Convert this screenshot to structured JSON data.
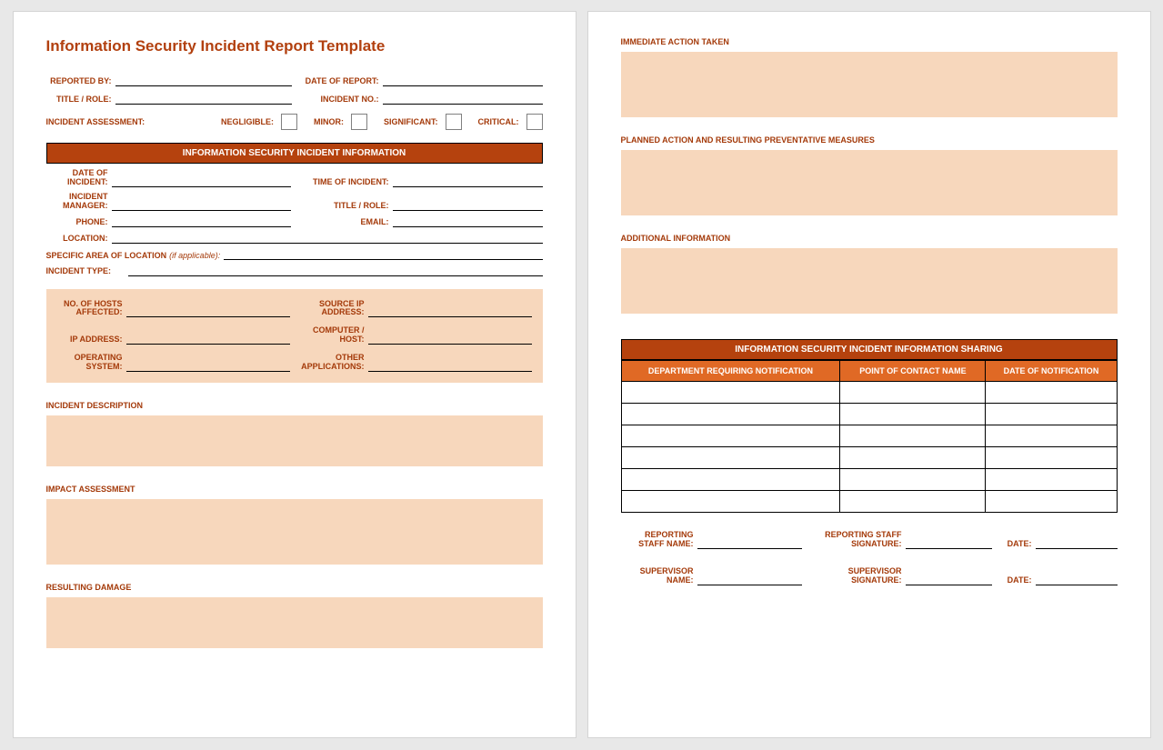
{
  "colors": {
    "accent_text": "#a43a0a",
    "title_text": "#b2400f",
    "section_bar_bg": "#b5420e",
    "table_header_bg": "#e06925",
    "light_fill_bg": "#f7d7bc",
    "page_bg": "#ffffff",
    "body_bg": "#e8e8e8",
    "border": "#000000"
  },
  "title": "Information Security Incident Report Template",
  "header_fields": {
    "reported_by": "REPORTED BY:",
    "date_of_report": "DATE OF REPORT:",
    "title_role": "TITLE / ROLE:",
    "incident_no": "INCIDENT NO.:"
  },
  "assessment": {
    "label": "INCIDENT ASSESSMENT:",
    "options": [
      "NEGLIGIBLE:",
      "MINOR:",
      "SIGNIFICANT:",
      "CRITICAL:"
    ]
  },
  "section_info": "INFORMATION SECURITY INCIDENT INFORMATION",
  "info_fields": {
    "date_of_incident": "DATE OF INCIDENT:",
    "time_of_incident": "TIME OF INCIDENT:",
    "incident_manager": "INCIDENT MANAGER:",
    "title_role": "TITLE / ROLE:",
    "phone": "PHONE:",
    "email": "EMAIL:",
    "location": "LOCATION:",
    "specific_area_prefix": "SPECIFIC AREA OF LOCATION",
    "specific_area_suffix": "(if applicable):",
    "incident_type": "INCIDENT TYPE:"
  },
  "tech_fields": {
    "hosts_affected": "NO. OF HOSTS AFFECTED:",
    "source_ip": "SOURCE IP ADDRESS:",
    "ip_address": "IP ADDRESS:",
    "computer_host": "COMPUTER / HOST:",
    "operating_system": "OPERATING SYSTEM:",
    "other_apps": "OTHER APPLICATIONS:"
  },
  "text_sections": {
    "incident_description": "INCIDENT DESCRIPTION",
    "impact_assessment": "IMPACT ASSESSMENT",
    "resulting_damage": "RESULTING DAMAGE",
    "immediate_action": "IMMEDIATE ACTION TAKEN",
    "planned_action": "PLANNED ACTION AND RESULTING PREVENTATIVE MEASURES",
    "additional_info": "ADDITIONAL INFORMATION"
  },
  "section_sharing": "INFORMATION SECURITY INCIDENT INFORMATION SHARING",
  "table_columns": [
    "DEPARTMENT REQUIRING NOTIFICATION",
    "POINT OF CONTACT NAME",
    "DATE OF NOTIFICATION"
  ],
  "table_row_count": 6,
  "signatures": {
    "reporting_staff_name": "REPORTING STAFF NAME:",
    "reporting_staff_sig": "REPORTING STAFF SIGNATURE:",
    "supervisor_name": "SUPERVISOR NAME:",
    "supervisor_sig": "SUPERVISOR SIGNATURE:",
    "date": "DATE:"
  }
}
